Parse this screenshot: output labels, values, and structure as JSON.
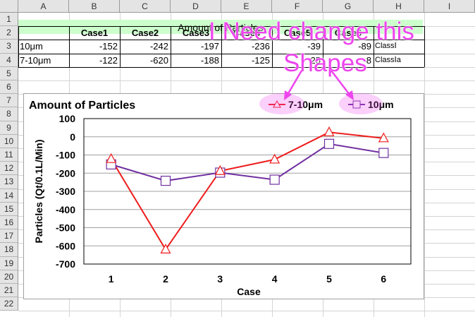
{
  "sheet": {
    "columns": [
      "A",
      "B",
      "C",
      "D",
      "E",
      "F",
      "G",
      "H",
      "I"
    ],
    "rows": [
      "1",
      "2",
      "3",
      "4",
      "5",
      "6",
      "7",
      "8",
      "9",
      "10",
      "11",
      "12",
      "13",
      "14",
      "15",
      "16",
      "17",
      "18",
      "19",
      "20",
      "21",
      "22"
    ],
    "table_title": "Amount of Particles",
    "case_headers": [
      "Case1",
      "Case2",
      "Case3",
      "Case4",
      "Case5",
      "Case6"
    ],
    "data_rows": [
      {
        "label": "10μm",
        "values": [
          "-152",
          "-242",
          "-197",
          "-236",
          "-39",
          "-89"
        ],
        "class": "ClassⅠ"
      },
      {
        "label": "7-10μm",
        "values": [
          "-122",
          "-620",
          "-188",
          "-125",
          "25",
          "-8"
        ],
        "class": "ClassⅠa"
      }
    ]
  },
  "chart_data": {
    "type": "line",
    "title": "Amount of Particles",
    "xlabel": "Case",
    "ylabel": "Particles (Qt/0.1L/Min)",
    "x": [
      1,
      2,
      3,
      4,
      5,
      6
    ],
    "ylim": [
      -700,
      100
    ],
    "yticks": [
      100,
      0,
      -100,
      -200,
      -300,
      -400,
      -500,
      -600,
      -700
    ],
    "grid": true,
    "legend_position": "top-right",
    "series": [
      {
        "name": "7-10μm",
        "values": [
          -122,
          -620,
          -188,
          -125,
          25,
          -8
        ],
        "color": "#ee1c1c",
        "marker": "triangle"
      },
      {
        "name": "10μm",
        "values": [
          -152,
          -242,
          -197,
          -236,
          -39,
          -89
        ],
        "color": "#7030a0",
        "marker": "square"
      }
    ]
  },
  "annotation": {
    "line1": "I Need change this",
    "line2": "Shapes",
    "color": "#ee44ee"
  }
}
